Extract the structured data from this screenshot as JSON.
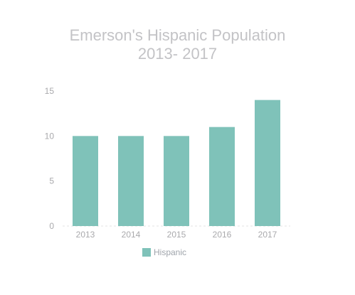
{
  "chart_data": {
    "type": "bar",
    "title": [
      "Emerson's Hispanic Population",
      "2013- 2017"
    ],
    "categories": [
      "2013",
      "2014",
      "2015",
      "2016",
      "2017"
    ],
    "series": [
      {
        "name": "Hispanic",
        "values": [
          10,
          10,
          10,
          11,
          14
        ]
      }
    ],
    "yticks": [
      "0",
      "5",
      "10",
      "15"
    ],
    "ylim": [
      0,
      15
    ],
    "grid": false,
    "legend": "bottom",
    "colors": {
      "bar": "#7fc2b9",
      "baseline": "#e3e3e3",
      "title": "#c3c3c6",
      "tick": "#a9a9ac"
    }
  }
}
